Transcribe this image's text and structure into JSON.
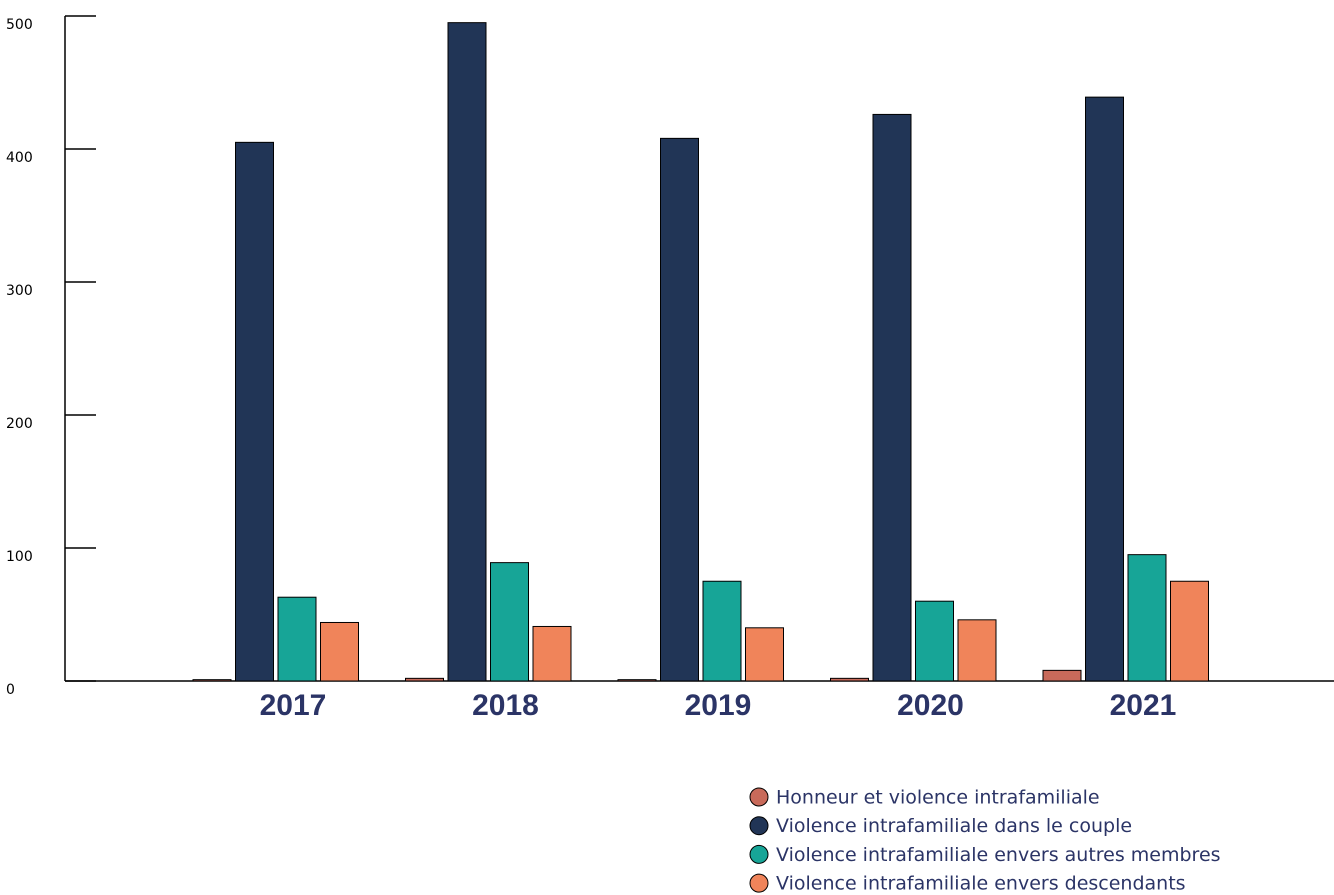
{
  "chart_data": {
    "type": "bar",
    "categories": [
      "2017",
      "2018",
      "2019",
      "2020",
      "2021"
    ],
    "series": [
      {
        "name": "Honneur et violence intrafamiliale",
        "color": "#c86a5a",
        "values": [
          1,
          2,
          1,
          2,
          8
        ]
      },
      {
        "name": "Violence intrafamiliale dans le couple",
        "color": "#213556",
        "values": [
          405,
          495,
          408,
          426,
          439
        ]
      },
      {
        "name": "Violence intrafamiliale envers autres membres",
        "color": "#17a597",
        "values": [
          63,
          89,
          75,
          60,
          95
        ]
      },
      {
        "name": "Violence intrafamiliale envers descendants",
        "color": "#f0845a",
        "values": [
          44,
          41,
          40,
          46,
          75
        ]
      }
    ],
    "ylim": [
      0,
      500
    ],
    "yticks": [
      0,
      100,
      200,
      300,
      400,
      500
    ]
  }
}
